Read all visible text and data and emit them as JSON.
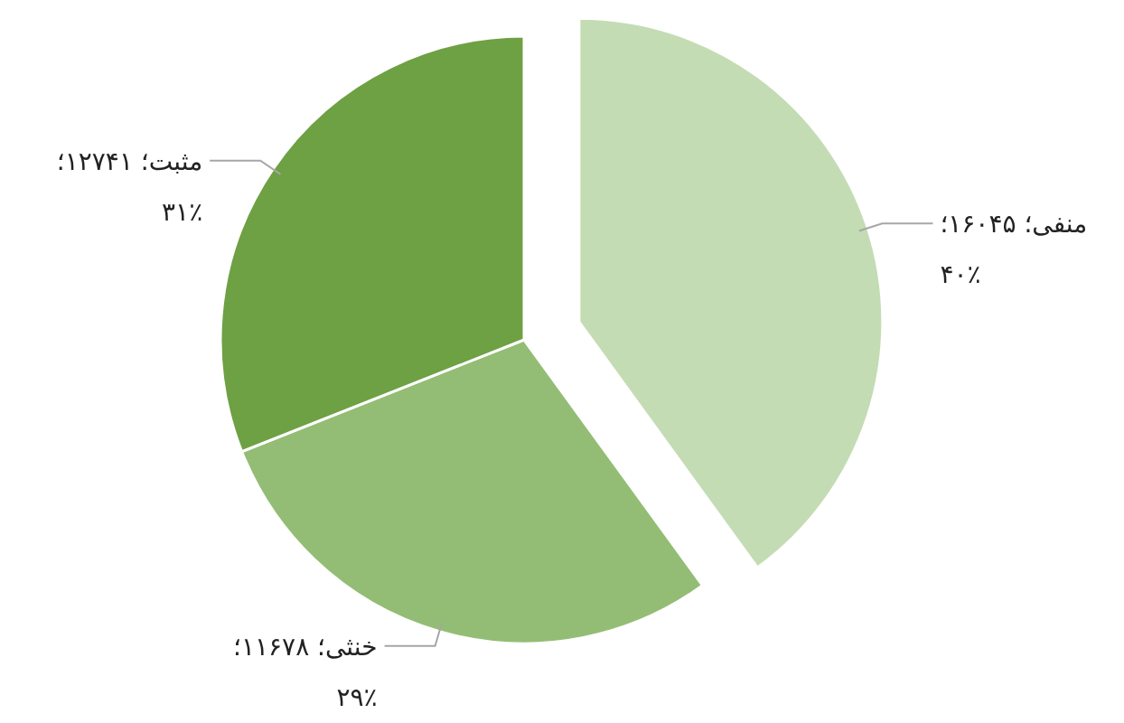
{
  "chart_data": {
    "type": "pie",
    "categories": [
      "منفی؛",
      "خنثی؛",
      "مثبت؛"
    ],
    "values": [
      40,
      29,
      31
    ],
    "colors": [
      "#c4dcb4",
      "#93bd74",
      "#6ea044"
    ],
    "value_labels": [
      "۱۶۰۴۵؛ ۴۰٪",
      "۱۱۶۷۸؛ ۲۹٪",
      "۱۲۷۴۱؛ ۳۱٪"
    ],
    "data_labels": true
  }
}
